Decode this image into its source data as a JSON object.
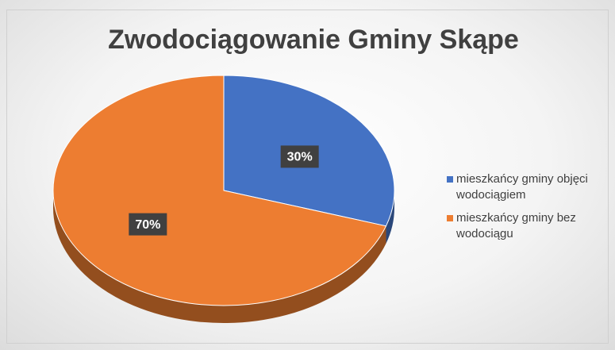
{
  "chart_data": {
    "type": "pie",
    "title": "Zwodociągowanie Gminy Skąpe",
    "categories": [
      "mieszkańcy gminy objęci wodociągiem",
      "mieszkańcy gminy bez wodociągu"
    ],
    "values": [
      30,
      70
    ],
    "value_labels": [
      "30%",
      "70%"
    ],
    "colors": [
      "#4472c4",
      "#ed7d31"
    ],
    "legend": "right"
  }
}
